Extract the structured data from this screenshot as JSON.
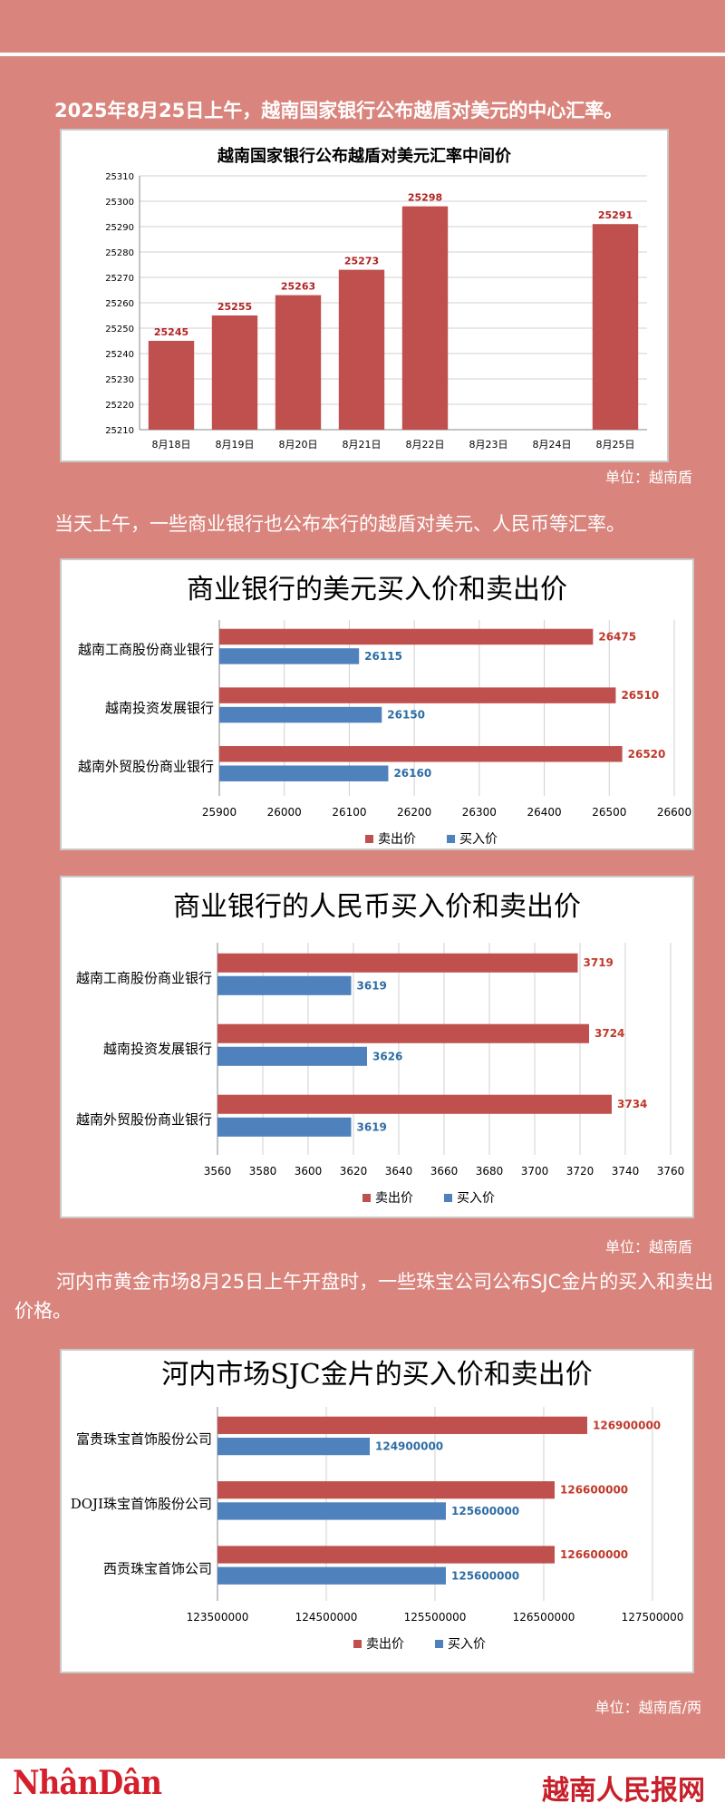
{
  "intro": {
    "p1": "2025年8月25日上午，越南国家银行公布越盾对美元的中心汇率。",
    "p2": "当天上午，一些商业银行也公布本行的越盾对美元、人民币等汇率。",
    "p3": "河内市黄金市场8月25日上午开盘时，一些珠宝公司公布SJC金片的买入和卖出价格。"
  },
  "units": {
    "u1": "单位：越南盾",
    "u2": "单位：越南盾",
    "u3": "单位：越南盾/两"
  },
  "footer": {
    "logo": "NhânDân",
    "site": "越南人民报网"
  },
  "colors": {
    "sell": "#c0504d",
    "buy": "#4f81bd",
    "background": "#d9857d",
    "logo": "#d4202c"
  },
  "chart_data": [
    {
      "type": "bar",
      "title": "越南国家银行公布越盾对美元汇率中间价",
      "categories": [
        "8月18日",
        "8月19日",
        "8月20日",
        "8月21日",
        "8月22日",
        "8月23日",
        "8月24日",
        "8月25日"
      ],
      "values": [
        25245,
        25255,
        25263,
        25273,
        25298,
        null,
        null,
        25291
      ],
      "ylim": [
        25210,
        25310
      ],
      "yticks": [
        25210,
        25220,
        25230,
        25240,
        25250,
        25260,
        25270,
        25280,
        25290,
        25300,
        25310
      ],
      "xlabel": "",
      "ylabel": "",
      "grid": true
    },
    {
      "type": "bar",
      "orientation": "horizontal",
      "title": "商业银行的美元买入价和卖出价",
      "categories": [
        "越南工商股份商业银行",
        "越南投资发展银行",
        "越南外贸股份商业银行"
      ],
      "series": [
        {
          "name": "卖出价",
          "values": [
            26475,
            26510,
            26520
          ]
        },
        {
          "name": "买入价",
          "values": [
            26115,
            26150,
            26160
          ]
        }
      ],
      "xlim": [
        25900,
        26600
      ],
      "xticks": [
        25900,
        26000,
        26100,
        26200,
        26300,
        26400,
        26500,
        26600
      ],
      "legend": "bottom",
      "grid": true
    },
    {
      "type": "bar",
      "orientation": "horizontal",
      "title": "商业银行的人民币买入价和卖出价",
      "categories": [
        "越南工商股份商业银行",
        "越南投资发展银行",
        "越南外贸股份商业银行"
      ],
      "series": [
        {
          "name": "卖出价",
          "values": [
            3719,
            3724,
            3734
          ]
        },
        {
          "name": "买入价",
          "values": [
            3619,
            3626,
            3619
          ]
        }
      ],
      "xlim": [
        3560,
        3760
      ],
      "xticks": [
        3560,
        3580,
        3600,
        3620,
        3640,
        3660,
        3680,
        3700,
        3720,
        3740,
        3760
      ],
      "legend": "bottom",
      "grid": true
    },
    {
      "type": "bar",
      "orientation": "horizontal",
      "title": "河内市场SJC金片的买入价和卖出价",
      "categories": [
        "富贵珠宝首饰股份公司",
        "DOJI珠宝首饰股份公司",
        "西贡珠宝首饰公司"
      ],
      "series": [
        {
          "name": "卖出价",
          "values": [
            126900000,
            126600000,
            126600000
          ]
        },
        {
          "name": "买入价",
          "values": [
            124900000,
            125600000,
            125600000
          ]
        }
      ],
      "xlim": [
        123500000,
        127500000
      ],
      "xticks": [
        123500000,
        124500000,
        125500000,
        126500000,
        127500000
      ],
      "legend": "bottom",
      "grid": true
    }
  ]
}
